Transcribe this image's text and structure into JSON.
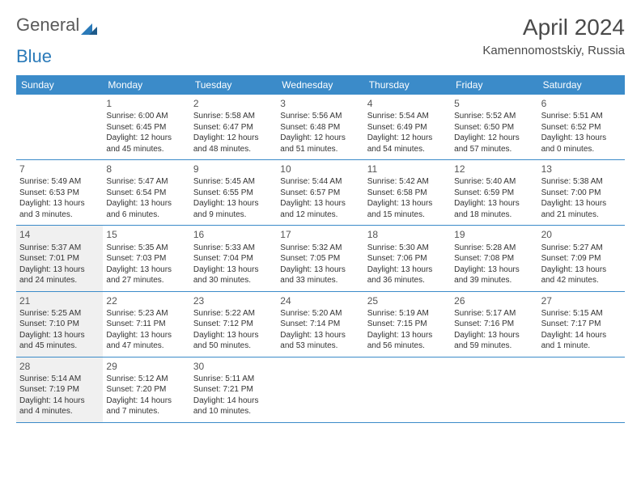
{
  "logo": {
    "text_a": "General",
    "text_b": "Blue"
  },
  "title": "April 2024",
  "location": "Kamennomostskiy, Russia",
  "header_bg": "#3b8bc9",
  "header_fg": "#ffffff",
  "shade_bg": "#f0f0f0",
  "border_color": "#3b8bc9",
  "day_names": [
    "Sunday",
    "Monday",
    "Tuesday",
    "Wednesday",
    "Thursday",
    "Friday",
    "Saturday"
  ],
  "weeks": [
    [
      {
        "blank": true
      },
      {
        "num": "1",
        "sunrise": "6:00 AM",
        "sunset": "6:45 PM",
        "daylight": "12 hours and 45 minutes."
      },
      {
        "num": "2",
        "sunrise": "5:58 AM",
        "sunset": "6:47 PM",
        "daylight": "12 hours and 48 minutes."
      },
      {
        "num": "3",
        "sunrise": "5:56 AM",
        "sunset": "6:48 PM",
        "daylight": "12 hours and 51 minutes."
      },
      {
        "num": "4",
        "sunrise": "5:54 AM",
        "sunset": "6:49 PM",
        "daylight": "12 hours and 54 minutes."
      },
      {
        "num": "5",
        "sunrise": "5:52 AM",
        "sunset": "6:50 PM",
        "daylight": "12 hours and 57 minutes."
      },
      {
        "num": "6",
        "sunrise": "5:51 AM",
        "sunset": "6:52 PM",
        "daylight": "13 hours and 0 minutes."
      }
    ],
    [
      {
        "num": "7",
        "sunrise": "5:49 AM",
        "sunset": "6:53 PM",
        "daylight": "13 hours and 3 minutes."
      },
      {
        "num": "8",
        "sunrise": "5:47 AM",
        "sunset": "6:54 PM",
        "daylight": "13 hours and 6 minutes."
      },
      {
        "num": "9",
        "sunrise": "5:45 AM",
        "sunset": "6:55 PM",
        "daylight": "13 hours and 9 minutes."
      },
      {
        "num": "10",
        "sunrise": "5:44 AM",
        "sunset": "6:57 PM",
        "daylight": "13 hours and 12 minutes."
      },
      {
        "num": "11",
        "sunrise": "5:42 AM",
        "sunset": "6:58 PM",
        "daylight": "13 hours and 15 minutes."
      },
      {
        "num": "12",
        "sunrise": "5:40 AM",
        "sunset": "6:59 PM",
        "daylight": "13 hours and 18 minutes."
      },
      {
        "num": "13",
        "sunrise": "5:38 AM",
        "sunset": "7:00 PM",
        "daylight": "13 hours and 21 minutes."
      }
    ],
    [
      {
        "num": "14",
        "shaded": true,
        "sunrise": "5:37 AM",
        "sunset": "7:01 PM",
        "daylight": "13 hours and 24 minutes."
      },
      {
        "num": "15",
        "sunrise": "5:35 AM",
        "sunset": "7:03 PM",
        "daylight": "13 hours and 27 minutes."
      },
      {
        "num": "16",
        "sunrise": "5:33 AM",
        "sunset": "7:04 PM",
        "daylight": "13 hours and 30 minutes."
      },
      {
        "num": "17",
        "sunrise": "5:32 AM",
        "sunset": "7:05 PM",
        "daylight": "13 hours and 33 minutes."
      },
      {
        "num": "18",
        "sunrise": "5:30 AM",
        "sunset": "7:06 PM",
        "daylight": "13 hours and 36 minutes."
      },
      {
        "num": "19",
        "sunrise": "5:28 AM",
        "sunset": "7:08 PM",
        "daylight": "13 hours and 39 minutes."
      },
      {
        "num": "20",
        "sunrise": "5:27 AM",
        "sunset": "7:09 PM",
        "daylight": "13 hours and 42 minutes."
      }
    ],
    [
      {
        "num": "21",
        "shaded": true,
        "sunrise": "5:25 AM",
        "sunset": "7:10 PM",
        "daylight": "13 hours and 45 minutes."
      },
      {
        "num": "22",
        "sunrise": "5:23 AM",
        "sunset": "7:11 PM",
        "daylight": "13 hours and 47 minutes."
      },
      {
        "num": "23",
        "sunrise": "5:22 AM",
        "sunset": "7:12 PM",
        "daylight": "13 hours and 50 minutes."
      },
      {
        "num": "24",
        "sunrise": "5:20 AM",
        "sunset": "7:14 PM",
        "daylight": "13 hours and 53 minutes."
      },
      {
        "num": "25",
        "sunrise": "5:19 AM",
        "sunset": "7:15 PM",
        "daylight": "13 hours and 56 minutes."
      },
      {
        "num": "26",
        "sunrise": "5:17 AM",
        "sunset": "7:16 PM",
        "daylight": "13 hours and 59 minutes."
      },
      {
        "num": "27",
        "sunrise": "5:15 AM",
        "sunset": "7:17 PM",
        "daylight": "14 hours and 1 minute."
      }
    ],
    [
      {
        "num": "28",
        "shaded": true,
        "sunrise": "5:14 AM",
        "sunset": "7:19 PM",
        "daylight": "14 hours and 4 minutes."
      },
      {
        "num": "29",
        "sunrise": "5:12 AM",
        "sunset": "7:20 PM",
        "daylight": "14 hours and 7 minutes."
      },
      {
        "num": "30",
        "sunrise": "5:11 AM",
        "sunset": "7:21 PM",
        "daylight": "14 hours and 10 minutes."
      },
      {
        "blank": true
      },
      {
        "blank": true
      },
      {
        "blank": true
      },
      {
        "blank": true
      }
    ]
  ],
  "labels": {
    "sunrise": "Sunrise: ",
    "sunset": "Sunset: ",
    "daylight": "Daylight: "
  }
}
